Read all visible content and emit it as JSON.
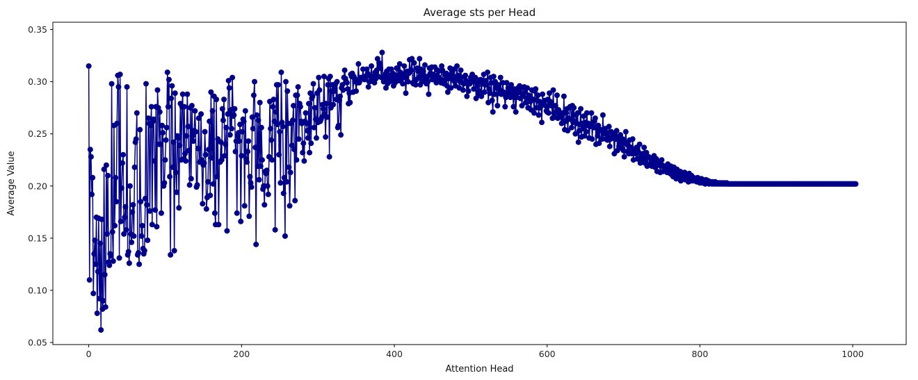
{
  "chart_data": {
    "type": "line",
    "title": "Average sts per Head",
    "xlabel": "Attention Head",
    "ylabel": "Average Value",
    "xlim": [
      -47,
      1070
    ],
    "ylim": [
      0.048,
      0.357
    ],
    "xticks": [
      0,
      200,
      400,
      600,
      800,
      1000
    ],
    "yticks": [
      0.05,
      0.1,
      0.15,
      0.2,
      0.25,
      0.3,
      0.35
    ],
    "ytick_labels": [
      "0.05",
      "0.10",
      "0.15",
      "0.20",
      "0.25",
      "0.30",
      "0.35"
    ],
    "grid": false,
    "markers": "circle",
    "colors": {
      "series": "#00008b",
      "axes": "#000000"
    },
    "x_start": 0,
    "x_step": 1,
    "series": [
      {
        "values": [
          0.315,
          0.11,
          0.235,
          0.228,
          0.192,
          0.208,
          0.097,
          0.135,
          0.148,
          0.125,
          0.17,
          0.078,
          0.118,
          0.169,
          0.092,
          0.145,
          0.062,
          0.168,
          0.082,
          0.09,
          0.216,
          0.115,
          0.084,
          0.22,
          0.154,
          0.21,
          0.127,
          0.124,
          0.135,
          0.133,
          0.298,
          0.156,
          0.128,
          0.258,
          0.162,
          0.208,
          0.185,
          0.26,
          0.306,
          0.295,
          0.131,
          0.307,
          0.166,
          0.198,
          0.222,
          0.23,
          0.154,
          0.17,
          0.18,
          0.158,
          0.295,
          0.134,
          0.137,
          0.126,
          0.2,
          0.154,
          0.146,
          0.175,
          0.182,
          0.152,
          0.218,
          0.242,
          0.245,
          0.27,
          0.134,
          0.136,
          0.125,
          0.254,
          0.185,
          0.152,
          0.162,
          0.14,
          0.135,
          0.138,
          0.188,
          0.298,
          0.182,
          0.148,
          0.265,
          0.26,
          0.176,
          0.258,
          0.276,
          0.163,
          0.262,
          0.264,
          0.224,
          0.177,
          0.276,
          0.161,
          0.292,
          0.275,
          0.24,
          0.271,
          0.24,
          0.174,
          0.258,
          0.251,
          0.2,
          0.203,
          0.225,
          0.244,
          0.256,
          0.309,
          0.276,
          0.302,
          0.209,
          0.134,
          0.284,
          0.296,
          0.218,
          0.242,
          0.138,
          0.289,
          0.213,
          0.194,
          0.248,
          0.246,
          0.179,
          0.239,
          0.279,
          0.225,
          0.276,
          0.288,
          0.226,
          0.276,
          0.231,
          0.224,
          0.248,
          0.288,
          0.257,
          0.234,
          0.201,
          0.275,
          0.207,
          0.277,
          0.248,
          0.243,
          0.253,
          0.272,
          0.252,
          0.199,
          0.201,
          0.236,
          0.265,
          0.223,
          0.223,
          0.269,
          0.225,
          0.183,
          0.22,
          0.222,
          0.252,
          0.23,
          0.178,
          0.189,
          0.204,
          0.235,
          0.262,
          0.191,
          0.29,
          0.227,
          0.272,
          0.202,
          0.286,
          0.174,
          0.163,
          0.283,
          0.209,
          0.245,
          0.163,
          0.223,
          0.223,
          0.242,
          0.225,
          0.274,
          0.263,
          0.283,
          0.229,
          0.24,
          0.256,
          0.157,
          0.269,
          0.301,
          0.294,
          0.249,
          0.273,
          0.255,
          0.304,
          0.267,
          0.268,
          0.274,
          0.233,
          0.243,
          0.174,
          0.248,
          0.251,
          0.243,
          0.259,
          0.166,
          0.229,
          0.252,
          0.264,
          0.262,
          0.181,
          0.272,
          0.226,
          0.223,
          0.233,
          0.243,
          0.171,
          0.209,
          0.203,
          0.199,
          0.266,
          0.255,
          0.287,
          0.3,
          0.237,
          0.144,
          0.268,
          0.219,
          0.263,
          0.206,
          0.28,
          0.219,
          0.256,
          0.225,
          0.197,
          0.2,
          0.182,
          0.214,
          0.212,
          0.215,
          0.2,
          0.192,
          0.228,
          0.281,
          0.255,
          0.244,
          0.225,
          0.276,
          0.283,
          0.262,
          0.158,
          0.271,
          0.297,
          0.259,
          0.297,
          0.23,
          0.252,
          0.203,
          0.309,
          0.261,
          0.257,
          0.193,
          0.208,
          0.152,
          0.3,
          0.204,
          0.291,
          0.26,
          0.218,
          0.181,
          0.213,
          0.26,
          0.239,
          0.263,
          0.277,
          0.235,
          0.186,
          0.287,
          0.225,
          0.287,
          0.295,
          0.245,
          0.279,
          0.276,
          0.262,
          0.26,
          0.232,
          0.241,
          0.224,
          0.262,
          0.27,
          0.26,
          0.253,
          0.246,
          0.279,
          0.232,
          0.289,
          0.241,
          0.284,
          0.286,
          0.298,
          0.256,
          0.275,
          0.264,
          0.246,
          0.289,
          0.261,
          0.304,
          0.292,
          0.262,
          0.264,
          0.266,
          0.278,
          0.274,
          0.305,
          0.269,
          0.247,
          0.279,
          0.266,
          0.297,
          0.303,
          0.228,
          0.305,
          0.275,
          0.291,
          0.297,
          0.278,
          0.291,
          0.294,
          0.298,
          0.283,
          0.3,
          0.256,
          0.258,
          0.282,
          0.286,
          0.249,
          0.294,
          0.297,
          0.292,
          0.304,
          0.311,
          0.303,
          0.3,
          0.299,
          0.293,
          0.279,
          0.289,
          0.28,
          0.307,
          0.305,
          0.308,
          0.29,
          0.305,
          0.303,
          0.3,
          0.291,
          0.299,
          0.301,
          0.317,
          0.299,
          0.301,
          0.304,
          0.303,
          0.304,
          0.312,
          0.303,
          0.302,
          0.305,
          0.305,
          0.312,
          0.308,
          0.295,
          0.3,
          0.3,
          0.305,
          0.315,
          0.305,
          0.302,
          0.302,
          0.299,
          0.309,
          0.303,
          0.311,
          0.322,
          0.305,
          0.318,
          0.315,
          0.313,
          0.304,
          0.328,
          0.305,
          0.3,
          0.303,
          0.307,
          0.294,
          0.31,
          0.298,
          0.304,
          0.312,
          0.3,
          0.306,
          0.312,
          0.301,
          0.308,
          0.296,
          0.302,
          0.299,
          0.306,
          0.313,
          0.313,
          0.305,
          0.301,
          0.317,
          0.309,
          0.307,
          0.303,
          0.298,
          0.307,
          0.315,
          0.304,
          0.289,
          0.304,
          0.31,
          0.3,
          0.308,
          0.321,
          0.31,
          0.311,
          0.322,
          0.299,
          0.298,
          0.318,
          0.301,
          0.297,
          0.302,
          0.313,
          0.31,
          0.304,
          0.322,
          0.297,
          0.312,
          0.3,
          0.311,
          0.31,
          0.305,
          0.316,
          0.302,
          0.298,
          0.305,
          0.3,
          0.288,
          0.313,
          0.308,
          0.306,
          0.314,
          0.302,
          0.307,
          0.304,
          0.314,
          0.303,
          0.299,
          0.306,
          0.311,
          0.31,
          0.304,
          0.302,
          0.299,
          0.315,
          0.311,
          0.301,
          0.298,
          0.307,
          0.302,
          0.308,
          0.296,
          0.29,
          0.303,
          0.306,
          0.313,
          0.294,
          0.305,
          0.309,
          0.302,
          0.312,
          0.3,
          0.296,
          0.305,
          0.315,
          0.302,
          0.306,
          0.294,
          0.3,
          0.311,
          0.304,
          0.299,
          0.292,
          0.298,
          0.305,
          0.306,
          0.301,
          0.286,
          0.299,
          0.291,
          0.299,
          0.298,
          0.304,
          0.301,
          0.307,
          0.304,
          0.293,
          0.3,
          0.304,
          0.284,
          0.302,
          0.296,
          0.287,
          0.291,
          0.3,
          0.302,
          0.286,
          0.301,
          0.298,
          0.307,
          0.29,
          0.297,
          0.301,
          0.297,
          0.309,
          0.28,
          0.293,
          0.289,
          0.304,
          0.299,
          0.282,
          0.271,
          0.305,
          0.288,
          0.3,
          0.294,
          0.288,
          0.277,
          0.297,
          0.293,
          0.289,
          0.304,
          0.288,
          0.29,
          0.299,
          0.29,
          0.288,
          0.276,
          0.285,
          0.299,
          0.289,
          0.294,
          0.29,
          0.288,
          0.285,
          0.297,
          0.29,
          0.288,
          0.276,
          0.293,
          0.285,
          0.271,
          0.285,
          0.289,
          0.294,
          0.29,
          0.296,
          0.284,
          0.294,
          0.277,
          0.286,
          0.289,
          0.295,
          0.29,
          0.28,
          0.284,
          0.294,
          0.275,
          0.287,
          0.285,
          0.281,
          0.273,
          0.292,
          0.283,
          0.283,
          0.27,
          0.291,
          0.293,
          0.275,
          0.282,
          0.287,
          0.268,
          0.281,
          0.275,
          0.279,
          0.261,
          0.288,
          0.278,
          0.279,
          0.282,
          0.277,
          0.272,
          0.271,
          0.283,
          0.27,
          0.289,
          0.281,
          0.277,
          0.277,
          0.265,
          0.292,
          0.27,
          0.266,
          0.277,
          0.271,
          0.287,
          0.265,
          0.273,
          0.268,
          0.269,
          0.266,
          0.26,
          0.27,
          0.262,
          0.286,
          0.254,
          0.262,
          0.27,
          0.274,
          0.253,
          0.265,
          0.264,
          0.276,
          0.276,
          0.256,
          0.277,
          0.261,
          0.275,
          0.262,
          0.25,
          0.268,
          0.26,
          0.27,
          0.242,
          0.253,
          0.259,
          0.274,
          0.247,
          0.26,
          0.255,
          0.267,
          0.248,
          0.261,
          0.252,
          0.27,
          0.258,
          0.26,
          0.246,
          0.257,
          0.258,
          0.27,
          0.245,
          0.261,
          0.256,
          0.262,
          0.265,
          0.24,
          0.256,
          0.248,
          0.258,
          0.241,
          0.254,
          0.254,
          0.245,
          0.245,
          0.268,
          0.25,
          0.251,
          0.255,
          0.245,
          0.251,
          0.244,
          0.247,
          0.257,
          0.238,
          0.245,
          0.252,
          0.251,
          0.246,
          0.247,
          0.231,
          0.249,
          0.245,
          0.253,
          0.234,
          0.247,
          0.238,
          0.243,
          0.249,
          0.239,
          0.236,
          0.245,
          0.234,
          0.228,
          0.241,
          0.252,
          0.241,
          0.233,
          0.239,
          0.231,
          0.244,
          0.233,
          0.237,
          0.231,
          0.245,
          0.225,
          0.235,
          0.233,
          0.231,
          0.237,
          0.226,
          0.233,
          0.232,
          0.24,
          0.222,
          0.229,
          0.226,
          0.231,
          0.224,
          0.237,
          0.222,
          0.227,
          0.232,
          0.219,
          0.227,
          0.228,
          0.221,
          0.227,
          0.226,
          0.219,
          0.227,
          0.221,
          0.229,
          0.218,
          0.225,
          0.226,
          0.214,
          0.222,
          0.22,
          0.223,
          0.213,
          0.219,
          0.225,
          0.22,
          0.214,
          0.219,
          0.215,
          0.218,
          0.216,
          0.213,
          0.221,
          0.214,
          0.216,
          0.212,
          0.219,
          0.211,
          0.214,
          0.209,
          0.218,
          0.215,
          0.212,
          0.207,
          0.216,
          0.212,
          0.211,
          0.209,
          0.214,
          0.205,
          0.213,
          0.21,
          0.211,
          0.208,
          0.213,
          0.206,
          0.21,
          0.209,
          0.209,
          0.204,
          0.212,
          0.208,
          0.205,
          0.21,
          0.207,
          0.205,
          0.208,
          0.206,
          0.205,
          0.207,
          0.204,
          0.208,
          0.205,
          0.206,
          0.203,
          0.205,
          0.207,
          0.203,
          0.206,
          0.204,
          0.205,
          0.202,
          0.206,
          0.204,
          0.203,
          0.205,
          0.202,
          0.204,
          0.203,
          0.204,
          0.202,
          0.204,
          0.203,
          0.202,
          0.204,
          0.202,
          0.203,
          0.203,
          0.202,
          0.203,
          0.202,
          0.203,
          0.202,
          0.203,
          0.202,
          0.202,
          0.203,
          0.202,
          0.202,
          0.203,
          0.202,
          0.202,
          0.202,
          0.202,
          0.202,
          0.202,
          0.202,
          0.202,
          0.202,
          0.202,
          0.202,
          0.202,
          0.202,
          0.202,
          0.202,
          0.202,
          0.202,
          0.202,
          0.202,
          0.202,
          0.202,
          0.202,
          0.202,
          0.202,
          0.202,
          0.202,
          0.202,
          0.202,
          0.202,
          0.202,
          0.202,
          0.202,
          0.202,
          0.202,
          0.202,
          0.202,
          0.202,
          0.202,
          0.202,
          0.202,
          0.202,
          0.202,
          0.202,
          0.202,
          0.202,
          0.202,
          0.202,
          0.202,
          0.202,
          0.202,
          0.202,
          0.202,
          0.202,
          0.202,
          0.202,
          0.202,
          0.202,
          0.202,
          0.202,
          0.202,
          0.202,
          0.202,
          0.202,
          0.202,
          0.202,
          0.202,
          0.202,
          0.202,
          0.202,
          0.202,
          0.202,
          0.202,
          0.202,
          0.202,
          0.202,
          0.202,
          0.202,
          0.202,
          0.202,
          0.202,
          0.202,
          0.202,
          0.202,
          0.202,
          0.202,
          0.202,
          0.202,
          0.202,
          0.202,
          0.202,
          0.202,
          0.202,
          0.202,
          0.202,
          0.202,
          0.202,
          0.202,
          0.202,
          0.202,
          0.202,
          0.202,
          0.202,
          0.202,
          0.202,
          0.202,
          0.202,
          0.202,
          0.202,
          0.202,
          0.202,
          0.202,
          0.202,
          0.202,
          0.202,
          0.202,
          0.202,
          0.202,
          0.202,
          0.202,
          0.202,
          0.202,
          0.202,
          0.202,
          0.202,
          0.202,
          0.202,
          0.202,
          0.202,
          0.202,
          0.202,
          0.202,
          0.202,
          0.202,
          0.202,
          0.202,
          0.202,
          0.202,
          0.202,
          0.202,
          0.202,
          0.202,
          0.202,
          0.202,
          0.202,
          0.202,
          0.202,
          0.202,
          0.202,
          0.202,
          0.202,
          0.202,
          0.202,
          0.202,
          0.202,
          0.202,
          0.202,
          0.202,
          0.202,
          0.202,
          0.202,
          0.202,
          0.202,
          0.202,
          0.202,
          0.202,
          0.202,
          0.202,
          0.202,
          0.202
        ]
      }
    ]
  }
}
